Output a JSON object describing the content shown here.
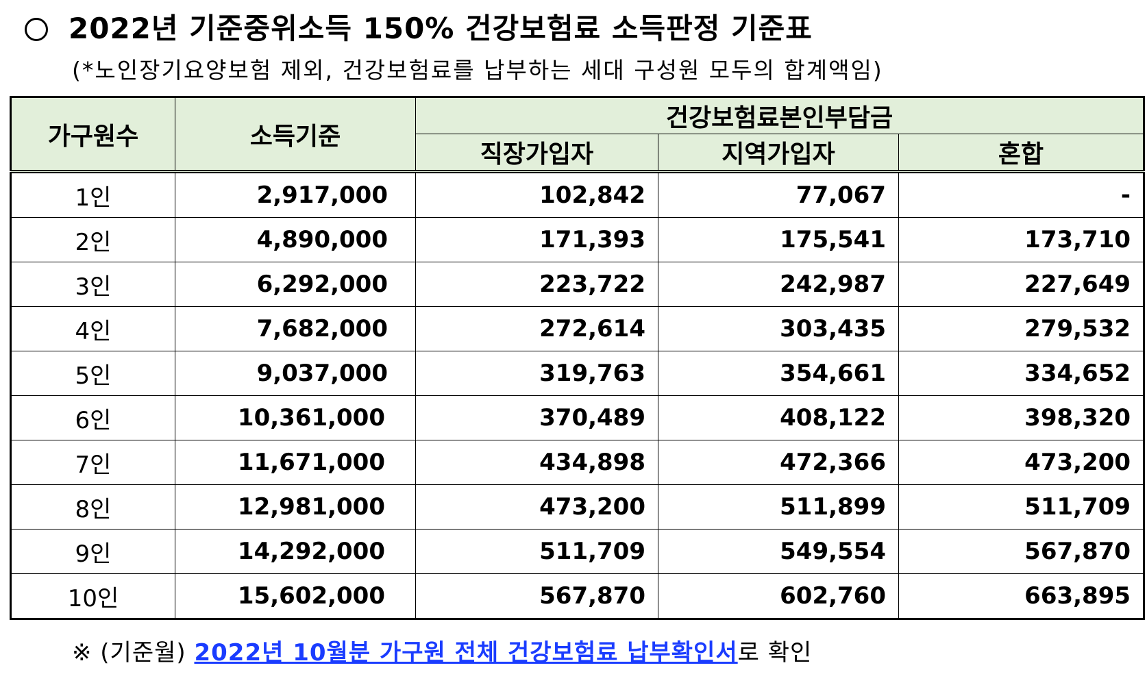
{
  "title": "2022년 기준중위소득 150% 건강보험료 소득판정 기준표",
  "subtitle": "(*노인장기요양보험 제외, 건강보험료를 납부하는 세대 구성원 모두의 합계액임)",
  "table": {
    "headers": {
      "household": "가구원수",
      "income": "소득기준",
      "premium_group": "건강보험료본인부담금",
      "employee": "직장가입자",
      "regional": "지역가입자",
      "mixed": "혼합"
    },
    "rows": [
      {
        "household": "1인",
        "income": "2,917,000",
        "employee": "102,842",
        "regional": "77,067",
        "mixed": "-"
      },
      {
        "household": "2인",
        "income": "4,890,000",
        "employee": "171,393",
        "regional": "175,541",
        "mixed": "173,710"
      },
      {
        "household": "3인",
        "income": "6,292,000",
        "employee": "223,722",
        "regional": "242,987",
        "mixed": "227,649"
      },
      {
        "household": "4인",
        "income": "7,682,000",
        "employee": "272,614",
        "regional": "303,435",
        "mixed": "279,532"
      },
      {
        "household": "5인",
        "income": "9,037,000",
        "employee": "319,763",
        "regional": "354,661",
        "mixed": "334,652"
      },
      {
        "household": "6인",
        "income": "10,361,000",
        "employee": "370,489",
        "regional": "408,122",
        "mixed": "398,320"
      },
      {
        "household": "7인",
        "income": "11,671,000",
        "employee": "434,898",
        "regional": "472,366",
        "mixed": "473,200"
      },
      {
        "household": "8인",
        "income": "12,981,000",
        "employee": "473,200",
        "regional": "511,899",
        "mixed": "511,709"
      },
      {
        "household": "9인",
        "income": "14,292,000",
        "employee": "511,709",
        "regional": "549,554",
        "mixed": "567,870"
      },
      {
        "household": "10인",
        "income": "15,602,000",
        "employee": "567,870",
        "regional": "602,760",
        "mixed": "663,895"
      }
    ]
  },
  "footnote": {
    "prefix": "※ (기준월) ",
    "link": "2022년 10월분 가구원 전체 건강보험료 납부확인서",
    "suffix": "로 확인"
  },
  "colors": {
    "header_bg": "#e2efda",
    "link": "#1a3cff"
  }
}
